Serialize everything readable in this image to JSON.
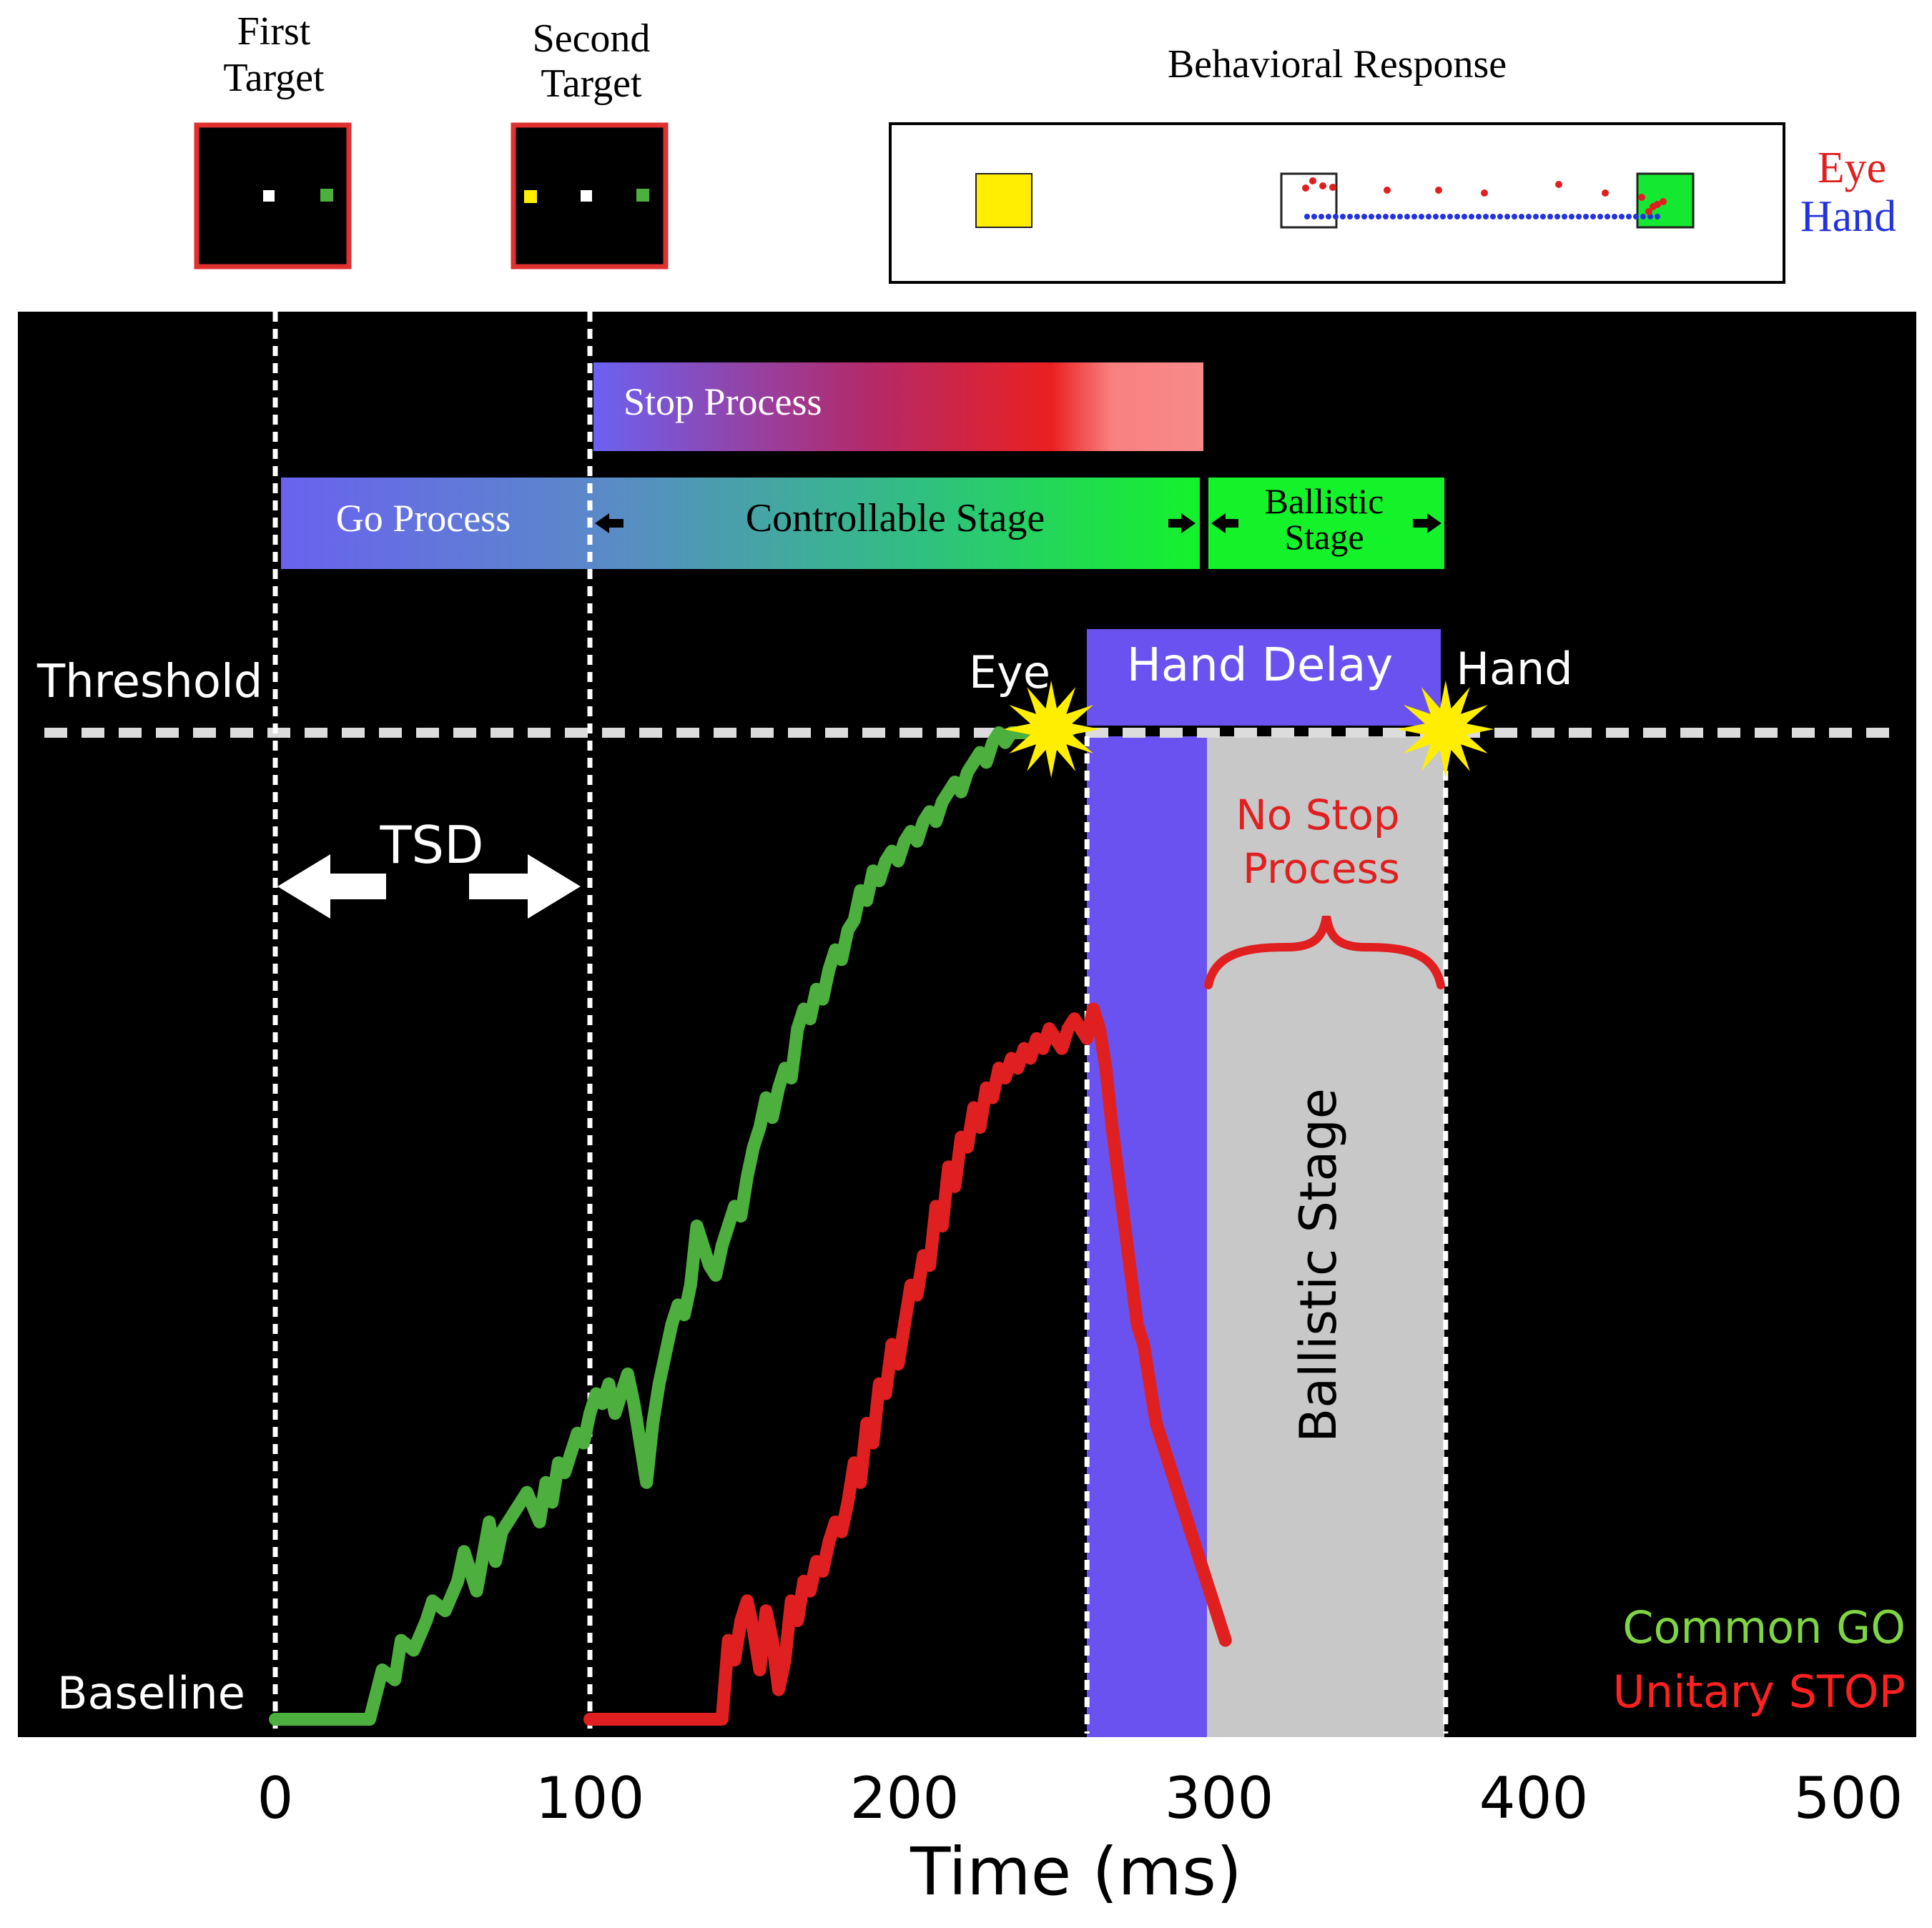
{
  "top_panels": {
    "first_target": {
      "label_line1": "First",
      "label_line2": "Target"
    },
    "second_target": {
      "label_line1": "Second",
      "label_line2": "Target"
    },
    "behavioral_response": {
      "title": "Behavioral Response",
      "legend_eye": "Eye",
      "legend_hand": "Hand"
    }
  },
  "processes": {
    "stop_process": "Stop Process",
    "go_process": "Go Process",
    "controllable_stage": "Controllable Stage",
    "ballistic_stage_line1": "Ballistic",
    "ballistic_stage_line2": "Stage"
  },
  "annotations": {
    "threshold": "Threshold",
    "baseline": "Baseline",
    "tsd": "TSD",
    "eye": "Eye",
    "hand": "Hand",
    "hand_delay": "Hand Delay",
    "no_stop_line1": "No Stop",
    "no_stop_line2": "Process",
    "ballistic_stage_vertical": "Ballistic Stage"
  },
  "legend": {
    "go": "Common GO",
    "stop": "Unitary STOP"
  },
  "colors": {
    "background": "#000000",
    "go_trace": "#4caf3e",
    "stop_trace": "#e02020",
    "hand_delay": "#6a52f0",
    "ballistic_region": "#c8c8c8",
    "threshold_line": "#dcdcdc",
    "star": "#ffee00",
    "bright_green": "#14f22a",
    "process_blue": "#6a62ee",
    "legend_go": "#7ed444",
    "legend_stop": "#ff2020",
    "eye_legend": "#e02020",
    "hand_legend": "#2233dd"
  },
  "chart_data": {
    "type": "line",
    "title": "",
    "xlabel": "Time (ms)",
    "ylabel": "",
    "xlim": [
      -80,
      505
    ],
    "ylim": [
      0,
      100
    ],
    "xticks": [
      0,
      100,
      200,
      300,
      400,
      500
    ],
    "threshold": 100,
    "baseline": 0,
    "events": {
      "first_target": 0,
      "second_target": 100,
      "eye_threshold_crossing": 258,
      "hand_threshold_crossing": 372,
      "stop_process_start": 100,
      "stop_process_end": 296,
      "go_process_start": 0,
      "controllable_end": 296,
      "ballistic_end": 372,
      "hand_delay_start": 258,
      "hand_delay_end": 296,
      "ballistic_region_start": 296,
      "ballistic_region_end": 372
    },
    "series": [
      {
        "name": "Common GO",
        "x": [
          0,
          30,
          34,
          38,
          40,
          44,
          48,
          50,
          54,
          58,
          60,
          64,
          68,
          70,
          72,
          76,
          80,
          84,
          86,
          88,
          90,
          92,
          94,
          96,
          98,
          100,
          102,
          104,
          106,
          108,
          110,
          112,
          114,
          116,
          118,
          120,
          122,
          124,
          126,
          128,
          130,
          132,
          134,
          136,
          138,
          140,
          142,
          144,
          146,
          148,
          150,
          152,
          154,
          156,
          158,
          160,
          162,
          164,
          166,
          168,
          170,
          172,
          174,
          176,
          178,
          180,
          182,
          184,
          186,
          188,
          190,
          192,
          194,
          196,
          198,
          200,
          202,
          204,
          206,
          208,
          210,
          212,
          214,
          216,
          218,
          220,
          222,
          224,
          226,
          228,
          230,
          232,
          234,
          236,
          238,
          240,
          242,
          244,
          246,
          248,
          250,
          252
        ],
        "values": [
          0,
          0,
          5,
          4,
          8,
          7,
          10,
          12,
          11,
          14,
          17,
          13,
          20,
          16,
          19,
          21,
          23,
          20,
          24,
          22,
          26,
          25,
          27,
          29,
          28,
          31,
          33,
          32,
          34,
          31,
          33,
          35,
          32,
          28,
          24,
          30,
          34,
          37,
          40,
          42,
          41,
          44,
          50,
          48,
          46,
          45,
          48,
          50,
          52,
          51,
          55,
          58,
          60,
          63,
          61,
          64,
          66,
          65,
          70,
          72,
          71,
          74,
          73,
          76,
          78,
          77,
          80,
          81,
          84,
          83,
          86,
          85,
          87,
          88,
          87,
          89,
          90,
          89,
          91,
          92,
          91,
          93,
          94,
          95,
          94,
          96,
          97,
          98,
          97,
          99,
          100,
          99,
          100,
          100,
          100,
          100,
          100,
          100,
          100,
          100,
          100,
          100
        ]
      },
      {
        "name": "Unitary STOP",
        "x": [
          100,
          142,
          144,
          146,
          148,
          150,
          152,
          154,
          156,
          158,
          160,
          162,
          164,
          166,
          168,
          170,
          172,
          174,
          176,
          178,
          180,
          182,
          184,
          186,
          188,
          190,
          192,
          194,
          196,
          198,
          200,
          202,
          204,
          206,
          208,
          210,
          212,
          214,
          216,
          218,
          220,
          222,
          224,
          226,
          228,
          230,
          232,
          234,
          236,
          238,
          240,
          242,
          244,
          246,
          248,
          250,
          252,
          254,
          256,
          258,
          260,
          262,
          264,
          266,
          268,
          270,
          272,
          274,
          276,
          278,
          280,
          282,
          284,
          286,
          288,
          290,
          292,
          294,
          296,
          298,
          300,
          302
        ],
        "values": [
          0,
          0,
          8,
          6,
          10,
          12,
          9,
          5,
          11,
          8,
          3,
          6,
          12,
          10,
          14,
          13,
          16,
          15,
          18,
          20,
          19,
          22,
          26,
          24,
          30,
          28,
          34,
          33,
          38,
          36,
          40,
          44,
          43,
          47,
          46,
          52,
          50,
          56,
          54,
          59,
          58,
          62,
          60,
          64,
          63,
          66,
          65,
          67,
          66,
          68,
          67,
          69,
          68,
          70,
          69,
          68,
          70,
          71,
          70,
          69,
          72,
          70,
          66,
          60,
          55,
          50,
          45,
          40,
          38,
          34,
          30,
          28,
          26,
          24,
          22,
          20,
          18,
          16,
          14,
          12,
          10,
          8
        ]
      }
    ]
  }
}
